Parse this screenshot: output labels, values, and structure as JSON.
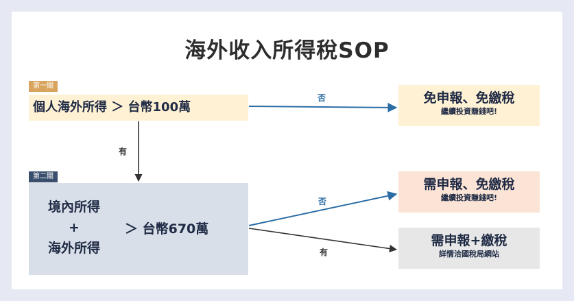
{
  "title": "海外收入所得稅SOP",
  "stage1": {
    "tag": "第一關",
    "label": "個人海外所得 ＞ 台幣100萬"
  },
  "stage2": {
    "tag": "第二關",
    "left_lines": [
      "境內所得",
      "+",
      "海外所得"
    ],
    "right": "＞ 台幣670萬"
  },
  "edges": {
    "stage1_no": "否",
    "stage1_yes": "有",
    "stage2_no": "否",
    "stage2_yes": "有"
  },
  "results": [
    {
      "main": "免申報、免繳稅",
      "sub": "繼續投資賺錢吧!"
    },
    {
      "main": "需申報、免繳稅",
      "sub": "繼續投資賺錢吧!"
    },
    {
      "main": "需申報+繳稅",
      "sub": "詳情洽國稅局網站"
    }
  ],
  "colors": {
    "no_arrow": "#2b6da4",
    "yes_arrow": "#333333",
    "stage1_fill": "#fff2d4",
    "stage2_fill": "#d8dfe9"
  }
}
